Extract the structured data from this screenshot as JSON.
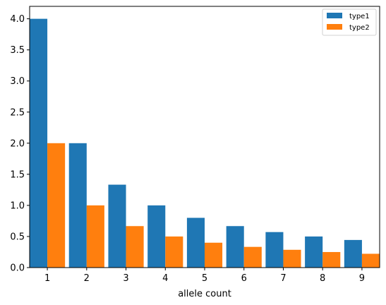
{
  "chart_data": {
    "type": "bar",
    "title": "",
    "xlabel": "allele count",
    "ylabel": "",
    "categories": [
      "1",
      "2",
      "3",
      "4",
      "5",
      "6",
      "7",
      "8",
      "9"
    ],
    "x": [
      1,
      2,
      3,
      4,
      5,
      6,
      7,
      8,
      9
    ],
    "series": [
      {
        "name": "type1",
        "color": "#1f77b4",
        "values": [
          4.0,
          2.0,
          1.333,
          1.0,
          0.8,
          0.667,
          0.571,
          0.5,
          0.444
        ]
      },
      {
        "name": "type2",
        "color": "#ff7f0e",
        "values": [
          2.0,
          1.0,
          0.667,
          0.5,
          0.4,
          0.333,
          0.286,
          0.25,
          0.222
        ]
      }
    ],
    "yticks": [
      "0.0",
      "0.5",
      "1.0",
      "1.5",
      "2.0",
      "2.5",
      "3.0",
      "3.5",
      "4.0"
    ],
    "ylim": [
      0,
      4.2
    ],
    "xlim": [
      0.55,
      9.45
    ],
    "grid": false,
    "legend_position": "top-right"
  }
}
